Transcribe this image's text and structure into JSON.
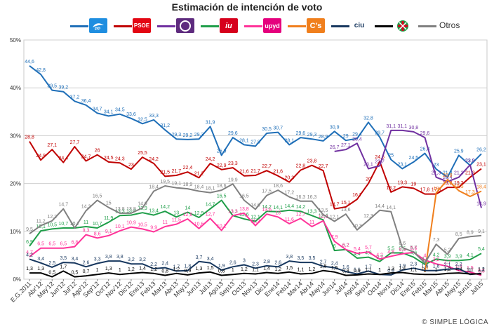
{
  "title": "Estimación de intención de voto",
  "footer": "© SIMPLE LÓGICA",
  "legend": [
    {
      "key": "pp",
      "name": "PP",
      "color": "#1f6fb8",
      "logo_color": "#1f8ee0",
      "text": ""
    },
    {
      "key": "psoe",
      "name": "PSOE",
      "color": "#c00000",
      "logo_color": "#e30613",
      "text": ""
    },
    {
      "key": "podemos",
      "name": "Podemos",
      "color": "#7030a0",
      "logo_color": "#5e2b7e",
      "text": ""
    },
    {
      "key": "iu",
      "name": "IU",
      "color": "#1f9e49",
      "logo_color": "#d6001c",
      "text": ""
    },
    {
      "key": "upyd",
      "name": "UPyD",
      "color": "#ff3399",
      "logo_color": "#e5007d",
      "text": ""
    },
    {
      "key": "cs",
      "name": "C's",
      "color": "#f07f1d",
      "logo_color": "#f07f1d",
      "text": ""
    },
    {
      "key": "ciu",
      "name": "CiU",
      "color": "#17375e",
      "logo_color": "#ffffff",
      "text": ""
    },
    {
      "key": "pnv",
      "name": "PNV",
      "color": "#000000",
      "logo_color": "#ffffff",
      "text": ""
    },
    {
      "key": "otros",
      "name": "Otros",
      "color": "#808080",
      "logo_color": "",
      "text": "Otros"
    }
  ],
  "chart_data": {
    "type": "line",
    "ylim": [
      0,
      50
    ],
    "yticks": [
      "0%",
      "10%",
      "20%",
      "30%",
      "40%",
      "50%"
    ],
    "grid": true,
    "categories": [
      "E.G.2011",
      "Abr12",
      "May12",
      "Jun12",
      "Jul12",
      "Ago12",
      "Sep12",
      "Oct12",
      "Nov12",
      "Dic12",
      "Ene13",
      "Feb13",
      "Mar13",
      "Abr13",
      "May13",
      "Jun13",
      "Jul13",
      "Ago13",
      "Sep13",
      "Oct13",
      "Nov13",
      "Dic13",
      "Ene14",
      "Feb14",
      "Mar14",
      "Abr14",
      "May14",
      "Jun14",
      "Jul14",
      "Ago14",
      "Sep14",
      "Oct14",
      "Nov14",
      "Dic14",
      "Ene15",
      "Feb15",
      "Mar15",
      "Abr15",
      "May15",
      "Jun15",
      "Jul15"
    ],
    "x_labels": [
      "E.G.2011",
      "Abr'12",
      "May'12",
      "Jun'12",
      "Jul'12",
      "Ago'12",
      "Sep'12",
      "Oct'12",
      "Nov'12",
      "Dic'12",
      "Ene13",
      "Feb13",
      "Mar13",
      "Abr13",
      "May13",
      "Jun13",
      "Jul13",
      "Ago13",
      "Sep13",
      "Oct13",
      "Nov13",
      "Dic13",
      "Ene14",
      "Feb14",
      "Mar14",
      "Abr14",
      "May14",
      "Jun14",
      "Jul14",
      "Ago14",
      "Sep14",
      "Oct14",
      "Nov14",
      "Dic14",
      "Ene15",
      "Feb15",
      "Mar15",
      "Abr15",
      "May15",
      "Jun15",
      "Jul15"
    ],
    "series": [
      {
        "name": "PP",
        "color": "#1f6fb8",
        "values": [
          44.6,
          42.8,
          39.5,
          39.2,
          37.2,
          36.4,
          34.7,
          34.1,
          34.5,
          33.6,
          32.5,
          33.3,
          31.2,
          29.3,
          29.2,
          29.3,
          31.9,
          25.9,
          29.6,
          28.1,
          27.8,
          30.5,
          30.7,
          28.1,
          29.6,
          29.3,
          28.9,
          30.9,
          29.0,
          29.4,
          32.8,
          29.7,
          25.0,
          23.1,
          24.5,
          26.3,
          23.0,
          21.3,
          25.9,
          23.8,
          26.2
        ]
      },
      {
        "name": "PSOE",
        "color": "#c00000",
        "values": [
          28.8,
          24.9,
          27.1,
          24.4,
          27.7,
          24.7,
          26.0,
          24.5,
          24.3,
          23.0,
          25.5,
          24.2,
          21.5,
          21.7,
          22.4,
          21.2,
          24.2,
          22.9,
          23.3,
          21.6,
          21.7,
          22.7,
          21.6,
          20.3,
          22.8,
          23.8,
          22.7,
          14.7,
          15.1,
          16.7,
          20.0,
          24.6,
          18.2,
          19.3,
          19.0,
          17.8,
          17.8,
          19.2,
          19.2,
          21.3,
          23.1
        ]
      },
      {
        "name": "Podemos",
        "color": "#7030a0",
        "values": [
          null,
          null,
          null,
          null,
          null,
          null,
          null,
          null,
          null,
          null,
          null,
          null,
          null,
          null,
          null,
          null,
          null,
          null,
          null,
          null,
          null,
          null,
          null,
          null,
          null,
          null,
          null,
          26.7,
          27.1,
          28.4,
          23.1,
          23.7,
          31.1,
          31.1,
          30.8,
          29.6,
          21.3,
          20.4,
          21.3,
          23.9,
          14.9
        ]
      },
      {
        "name": "IU",
        "color": "#1f9e49",
        "values": [
          6.9,
          10.1,
          10.5,
          10.7,
          10.7,
          11.0,
          10.7,
          11.9,
          13.3,
          13.4,
          13.9,
          13.4,
          14.2,
          13.0,
          14.0,
          12.9,
          14.7,
          16.5,
          13.3,
          12.6,
          12.1,
          14.2,
          14.1,
          14.4,
          14.2,
          13.3,
          12.4,
          6.0,
          6.2,
          4.4,
          4.6,
          3.7,
          5.5,
          5.5,
          4.6,
          3.1,
          4.2,
          3.9,
          3.9,
          4.1,
          5.4
        ]
      },
      {
        "name": "UPyD",
        "color": "#ff3399",
        "values": [
          4.7,
          6.5,
          6.5,
          6.5,
          6.8,
          9.3,
          8.6,
          9.1,
          10.1,
          10.9,
          10.5,
          9.9,
          11.0,
          11.5,
          12.6,
          10.6,
          12.7,
          10.2,
          13.3,
          13.8,
          11.2,
          13.6,
          13.0,
          11.6,
          12.7,
          11.0,
          12.2,
          7.9,
          6.2,
          5.4,
          5.7,
          4.2,
          4.8,
          5.3,
          5.6,
          4.0,
          3.2,
          2.7,
          1.8,
          1.5,
          0.8
        ]
      },
      {
        "name": "C's",
        "color": "#f07f1d",
        "values": [
          null,
          null,
          null,
          null,
          null,
          null,
          null,
          null,
          null,
          null,
          null,
          null,
          null,
          null,
          null,
          null,
          null,
          null,
          null,
          null,
          null,
          null,
          null,
          null,
          null,
          null,
          null,
          null,
          null,
          null,
          null,
          null,
          null,
          null,
          null,
          1.5,
          18.0,
          20.8,
          18.5,
          17.3,
          18.4
        ]
      },
      {
        "name": "CiU",
        "color": "#17375e",
        "values": [
          4.2,
          3.4,
          2.5,
          3.5,
          3.4,
          2.6,
          3.3,
          3.8,
          3.8,
          3.2,
          3.2,
          2.2,
          2.4,
          1.7,
          1.8,
          3.7,
          3.4,
          1.9,
          2.6,
          3.0,
          2.3,
          2.8,
          2.6,
          3.8,
          3.5,
          3.5,
          2.7,
          2.4,
          1.6,
          1.1,
          1.7,
          1.0,
          0.9,
          1.9,
          2.3,
          1.8,
          1.8,
          2.1,
          2.2,
          1.0,
          1.2
        ]
      },
      {
        "name": "PNV",
        "color": "#000000",
        "values": [
          1.3,
          1.3,
          0.5,
          1.7,
          0.5,
          0.7,
          1.0,
          1.3,
          1.0,
          1.2,
          1.4,
          1.2,
          0.8,
          1.2,
          0.9,
          1.3,
          1.5,
          0.8,
          1.0,
          1.2,
          1.1,
          1.4,
          1.2,
          1.5,
          1.1,
          1.2,
          1.8,
          1.5,
          0.8,
          0.9,
          1.1,
          1.0,
          1.3,
          1.4,
          1.1,
          1.0,
          1.0,
          1.2,
          1.3,
          1.1,
          1.1
        ]
      },
      {
        "name": "Otros",
        "color": "#808080",
        "values": [
          9.5,
          11.2,
          12.2,
          14.7,
          10.7,
          14.3,
          16.5,
          15.0,
          13.8,
          13.8,
          14.9,
          18.4,
          19.5,
          19.1,
          18.9,
          18.4,
          18.1,
          18.6,
          19.9,
          16.5,
          14.6,
          17.5,
          18.6,
          17.2,
          16.3,
          16.3,
          13.5,
          12.1,
          13.6,
          10.3,
          12.3,
          14.4,
          14.1,
          6.6,
          5.7,
          3.4,
          7.3,
          5.2,
          8.5,
          8.9,
          9.1
        ]
      }
    ]
  }
}
